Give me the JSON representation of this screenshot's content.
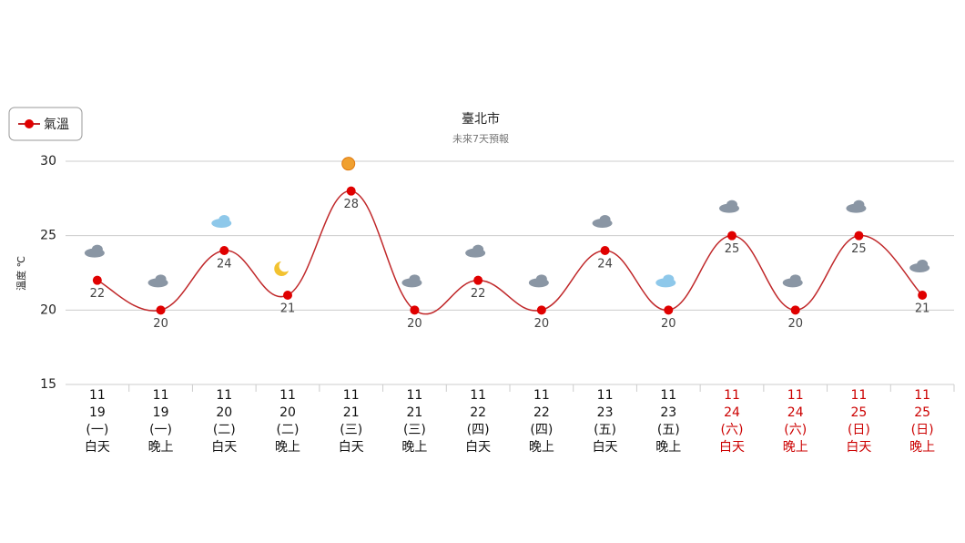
{
  "chart_data": {
    "type": "line",
    "title": "臺北市",
    "subtitle": "未來7天預報",
    "y_label": "溫度 ℃",
    "categories": [
      [
        "11",
        "19",
        "(一)",
        "白天"
      ],
      [
        "11",
        "19",
        "(一)",
        "晚上"
      ],
      [
        "11",
        "20",
        "(二)",
        "白天"
      ],
      [
        "11",
        "20",
        "(二)",
        "晚上"
      ],
      [
        "11",
        "21",
        "(三)",
        "白天"
      ],
      [
        "11",
        "21",
        "(三)",
        "晚上"
      ],
      [
        "11",
        "22",
        "(四)",
        "白天"
      ],
      [
        "11",
        "22",
        "(四)",
        "晚上"
      ],
      [
        "11",
        "23",
        "(五)",
        "白天"
      ],
      [
        "11",
        "23",
        "(五)",
        "晚上"
      ],
      [
        "11",
        "24",
        "(六)",
        "白天"
      ],
      [
        "11",
        "24",
        "(六)",
        "晚上"
      ],
      [
        "11",
        "25",
        "(日)",
        "白天"
      ],
      [
        "11",
        "25",
        "(日)",
        "晚上"
      ]
    ],
    "category_colors": [
      "#111",
      "#111",
      "#111",
      "#111",
      "#111",
      "#111",
      "#111",
      "#111",
      "#111",
      "#111",
      "#c00",
      "#c00",
      "#c00",
      "#c00"
    ],
    "series": [
      {
        "name": "氣溫",
        "color": "#e00000",
        "line_color": "#c0282a",
        "values": [
          22,
          20,
          24,
          21,
          28,
          20,
          22,
          20,
          24,
          20,
          25,
          20,
          25,
          21
        ]
      }
    ],
    "ylim": [
      15,
      30
    ],
    "yticks": [
      15,
      20,
      25,
      30
    ],
    "grid": true,
    "legend": "top-left"
  }
}
